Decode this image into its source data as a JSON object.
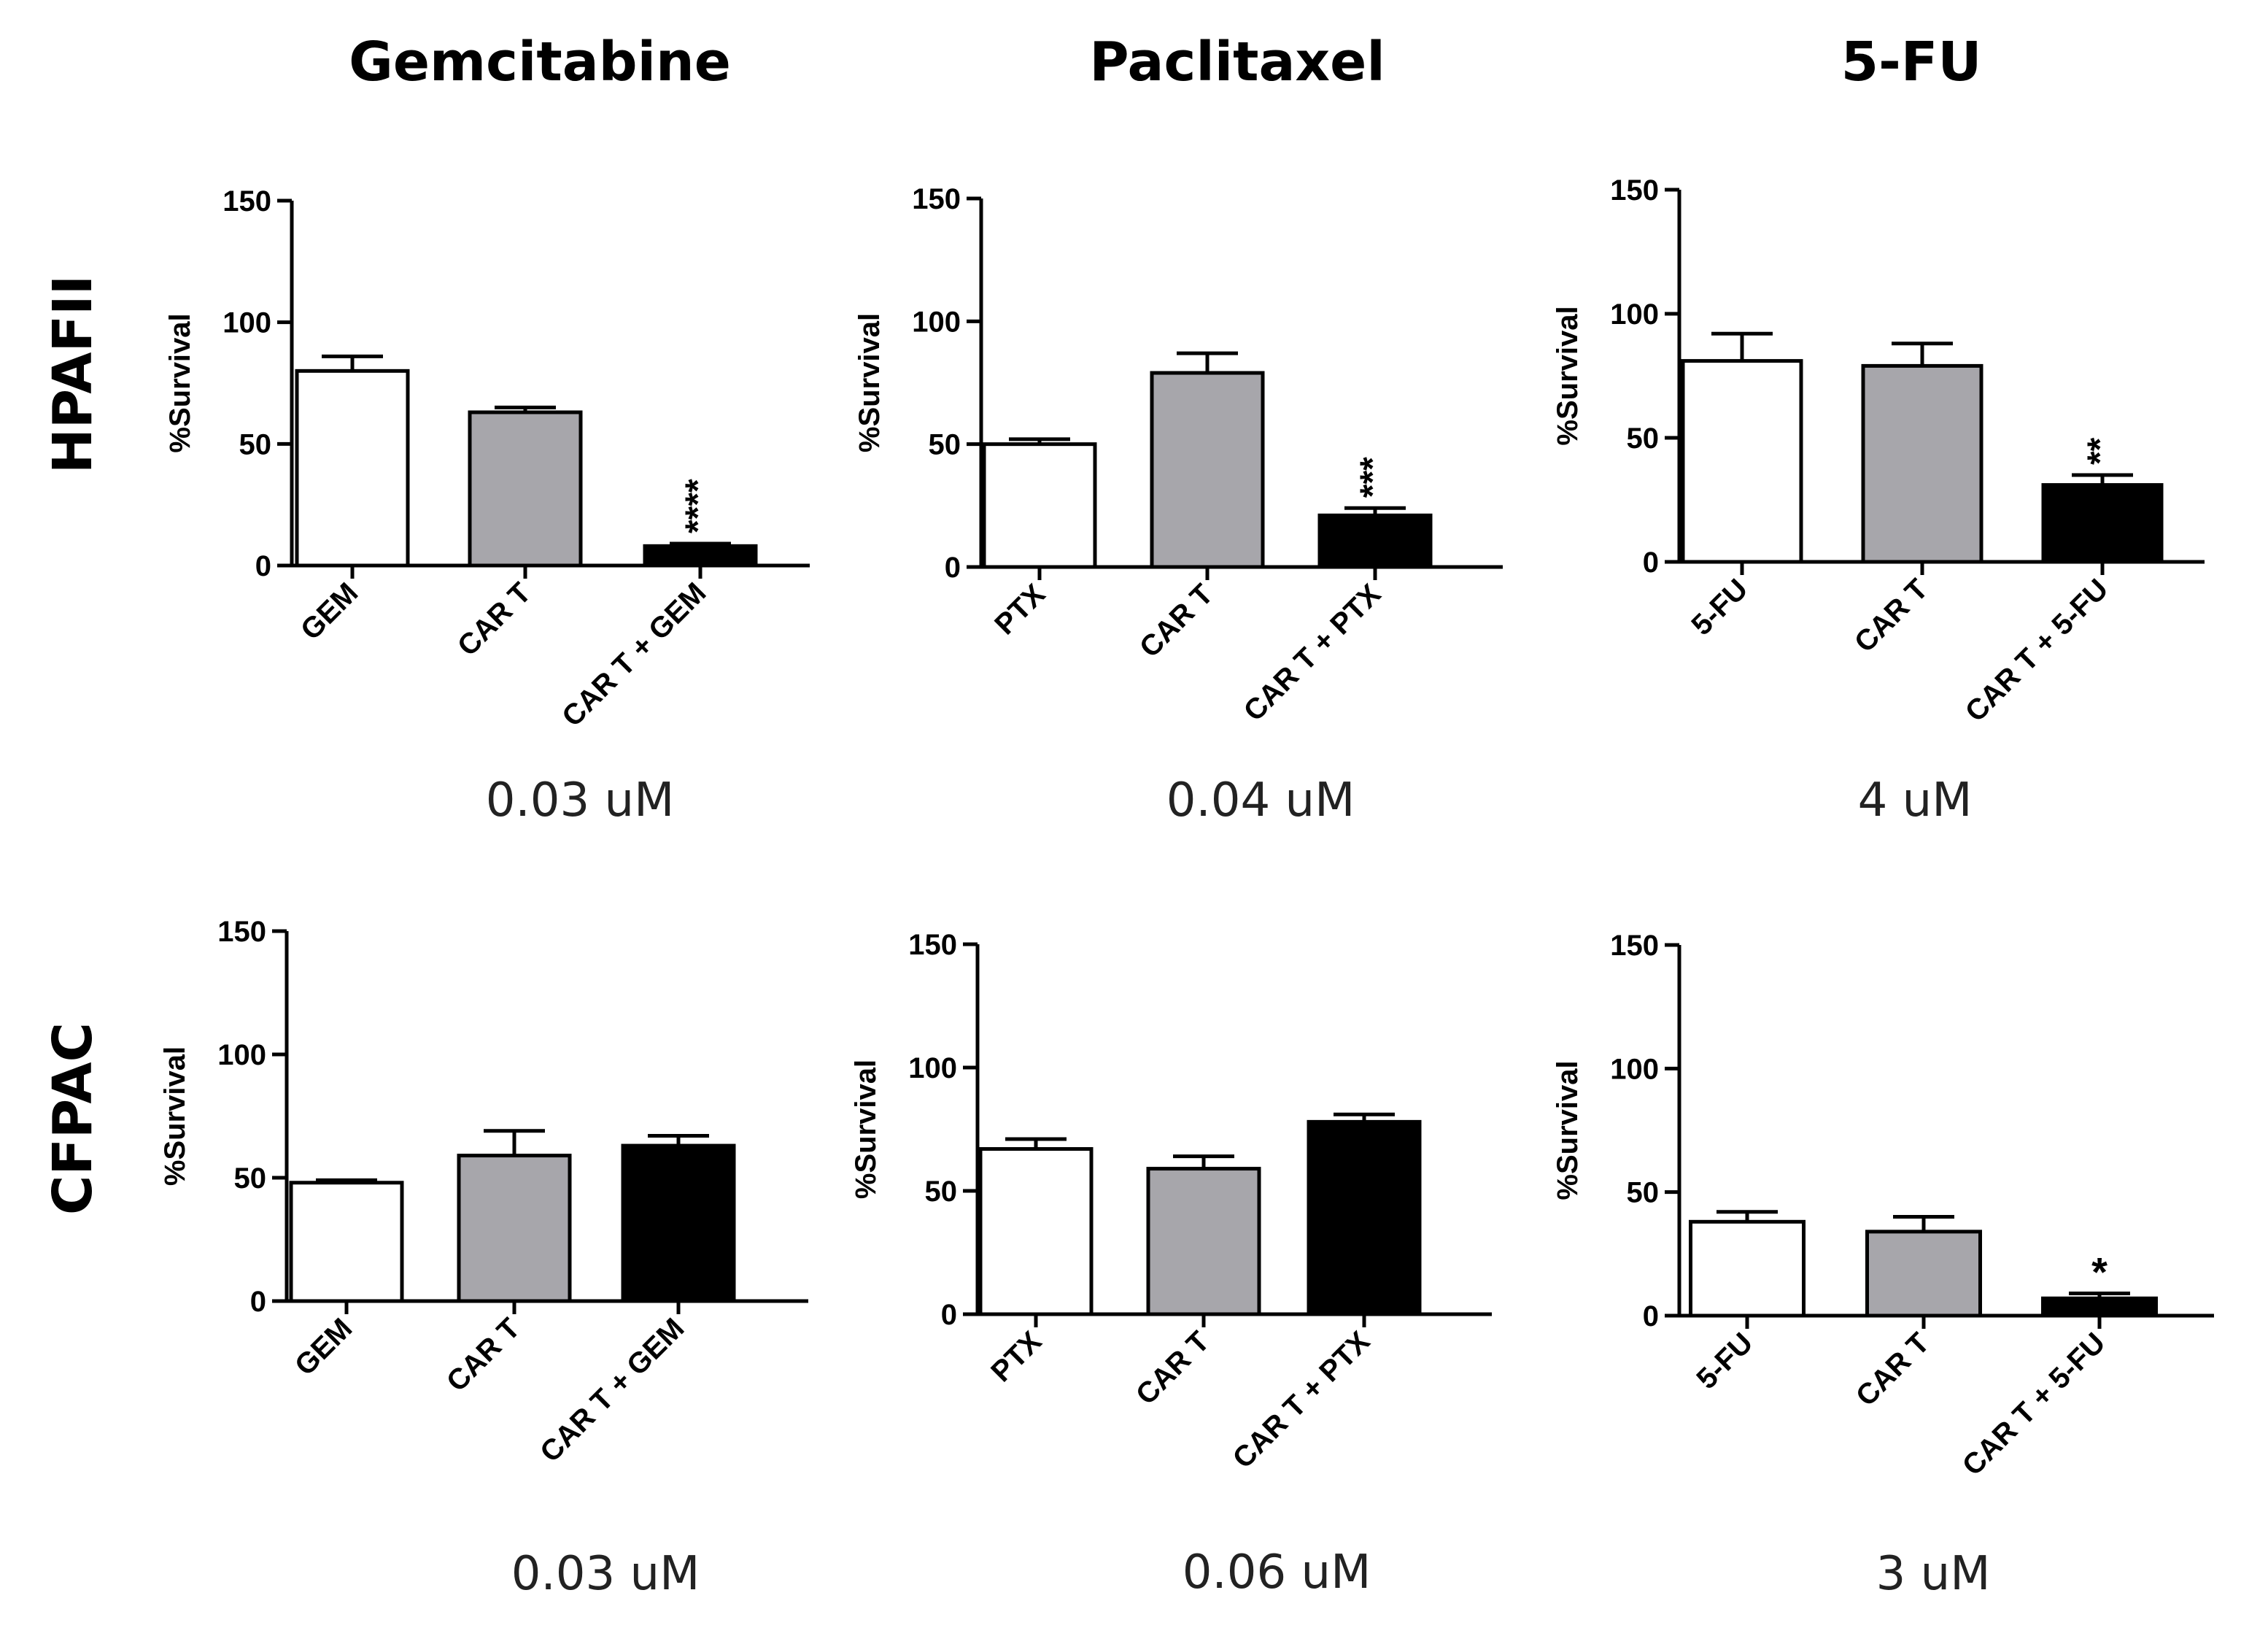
{
  "figure": {
    "column_titles": [
      "Gemcitabine",
      "Paclitaxel",
      "5-FU"
    ],
    "row_labels": [
      "HPAFII",
      "CFPAC"
    ]
  },
  "chart_data": [
    {
      "type": "bar",
      "row": "HPAFII",
      "column": "Gemcitabine",
      "categories": [
        "GEM",
        "CAR T",
        "CAR T + GEM"
      ],
      "values": [
        80,
        63,
        8
      ],
      "errors": [
        6,
        2,
        1
      ],
      "significance": [
        "",
        "",
        "****"
      ],
      "ylabel": "%Survival",
      "ylim": [
        0,
        150
      ],
      "yticks": [
        0,
        50,
        100,
        150
      ],
      "concentration": "0.03 uM"
    },
    {
      "type": "bar",
      "row": "HPAFII",
      "column": "Paclitaxel",
      "categories": [
        "PTX",
        "CAR T",
        "CAR T + PTX"
      ],
      "values": [
        50,
        79,
        21
      ],
      "errors": [
        2,
        8,
        3
      ],
      "significance": [
        "",
        "",
        "***"
      ],
      "ylabel": "%Survival",
      "ylim": [
        0,
        150
      ],
      "yticks": [
        0,
        50,
        100,
        150
      ],
      "concentration": "0.04 uM"
    },
    {
      "type": "bar",
      "row": "HPAFII",
      "column": "5-FU",
      "categories": [
        "5-FU",
        "CAR T",
        "CAR T + 5-FU"
      ],
      "values": [
        81,
        79,
        31
      ],
      "errors": [
        11,
        9,
        4
      ],
      "significance": [
        "",
        "",
        "**"
      ],
      "ylabel": "%Survival",
      "ylim": [
        0,
        150
      ],
      "yticks": [
        0,
        50,
        100,
        150
      ],
      "concentration": "4 uM"
    },
    {
      "type": "bar",
      "row": "CFPAC",
      "column": "Gemcitabine",
      "categories": [
        "GEM",
        "CAR T",
        "CAR T + GEM"
      ],
      "values": [
        48,
        59,
        63
      ],
      "errors": [
        1,
        10,
        4
      ],
      "significance": [
        "",
        "",
        ""
      ],
      "ylabel": "%Survival",
      "ylim": [
        0,
        150
      ],
      "yticks": [
        0,
        50,
        100,
        150
      ],
      "concentration": "0.03 uM"
    },
    {
      "type": "bar",
      "row": "CFPAC",
      "column": "Paclitaxel",
      "categories": [
        "PTX",
        "CAR T",
        "CAR T + PTX"
      ],
      "values": [
        67,
        59,
        78
      ],
      "errors": [
        4,
        5,
        3
      ],
      "significance": [
        "",
        "",
        ""
      ],
      "ylabel": "%Survival",
      "ylim": [
        0,
        150
      ],
      "yticks": [
        0,
        50,
        100,
        150
      ],
      "concentration": "0.06 uM"
    },
    {
      "type": "bar",
      "row": "CFPAC",
      "column": "5-FU",
      "categories": [
        "5-FU",
        "CAR T",
        "CAR T + 5-FU"
      ],
      "values": [
        38,
        34,
        7
      ],
      "errors": [
        4,
        6,
        2
      ],
      "significance": [
        "",
        "",
        "*"
      ],
      "ylabel": "%Survival",
      "ylim": [
        0,
        150
      ],
      "yticks": [
        0,
        50,
        100,
        150
      ],
      "concentration": "3 uM"
    }
  ],
  "colors": {
    "bar_fills": [
      "#ffffff",
      "#a7a6ab",
      "#000000"
    ],
    "stroke": "#000000"
  }
}
